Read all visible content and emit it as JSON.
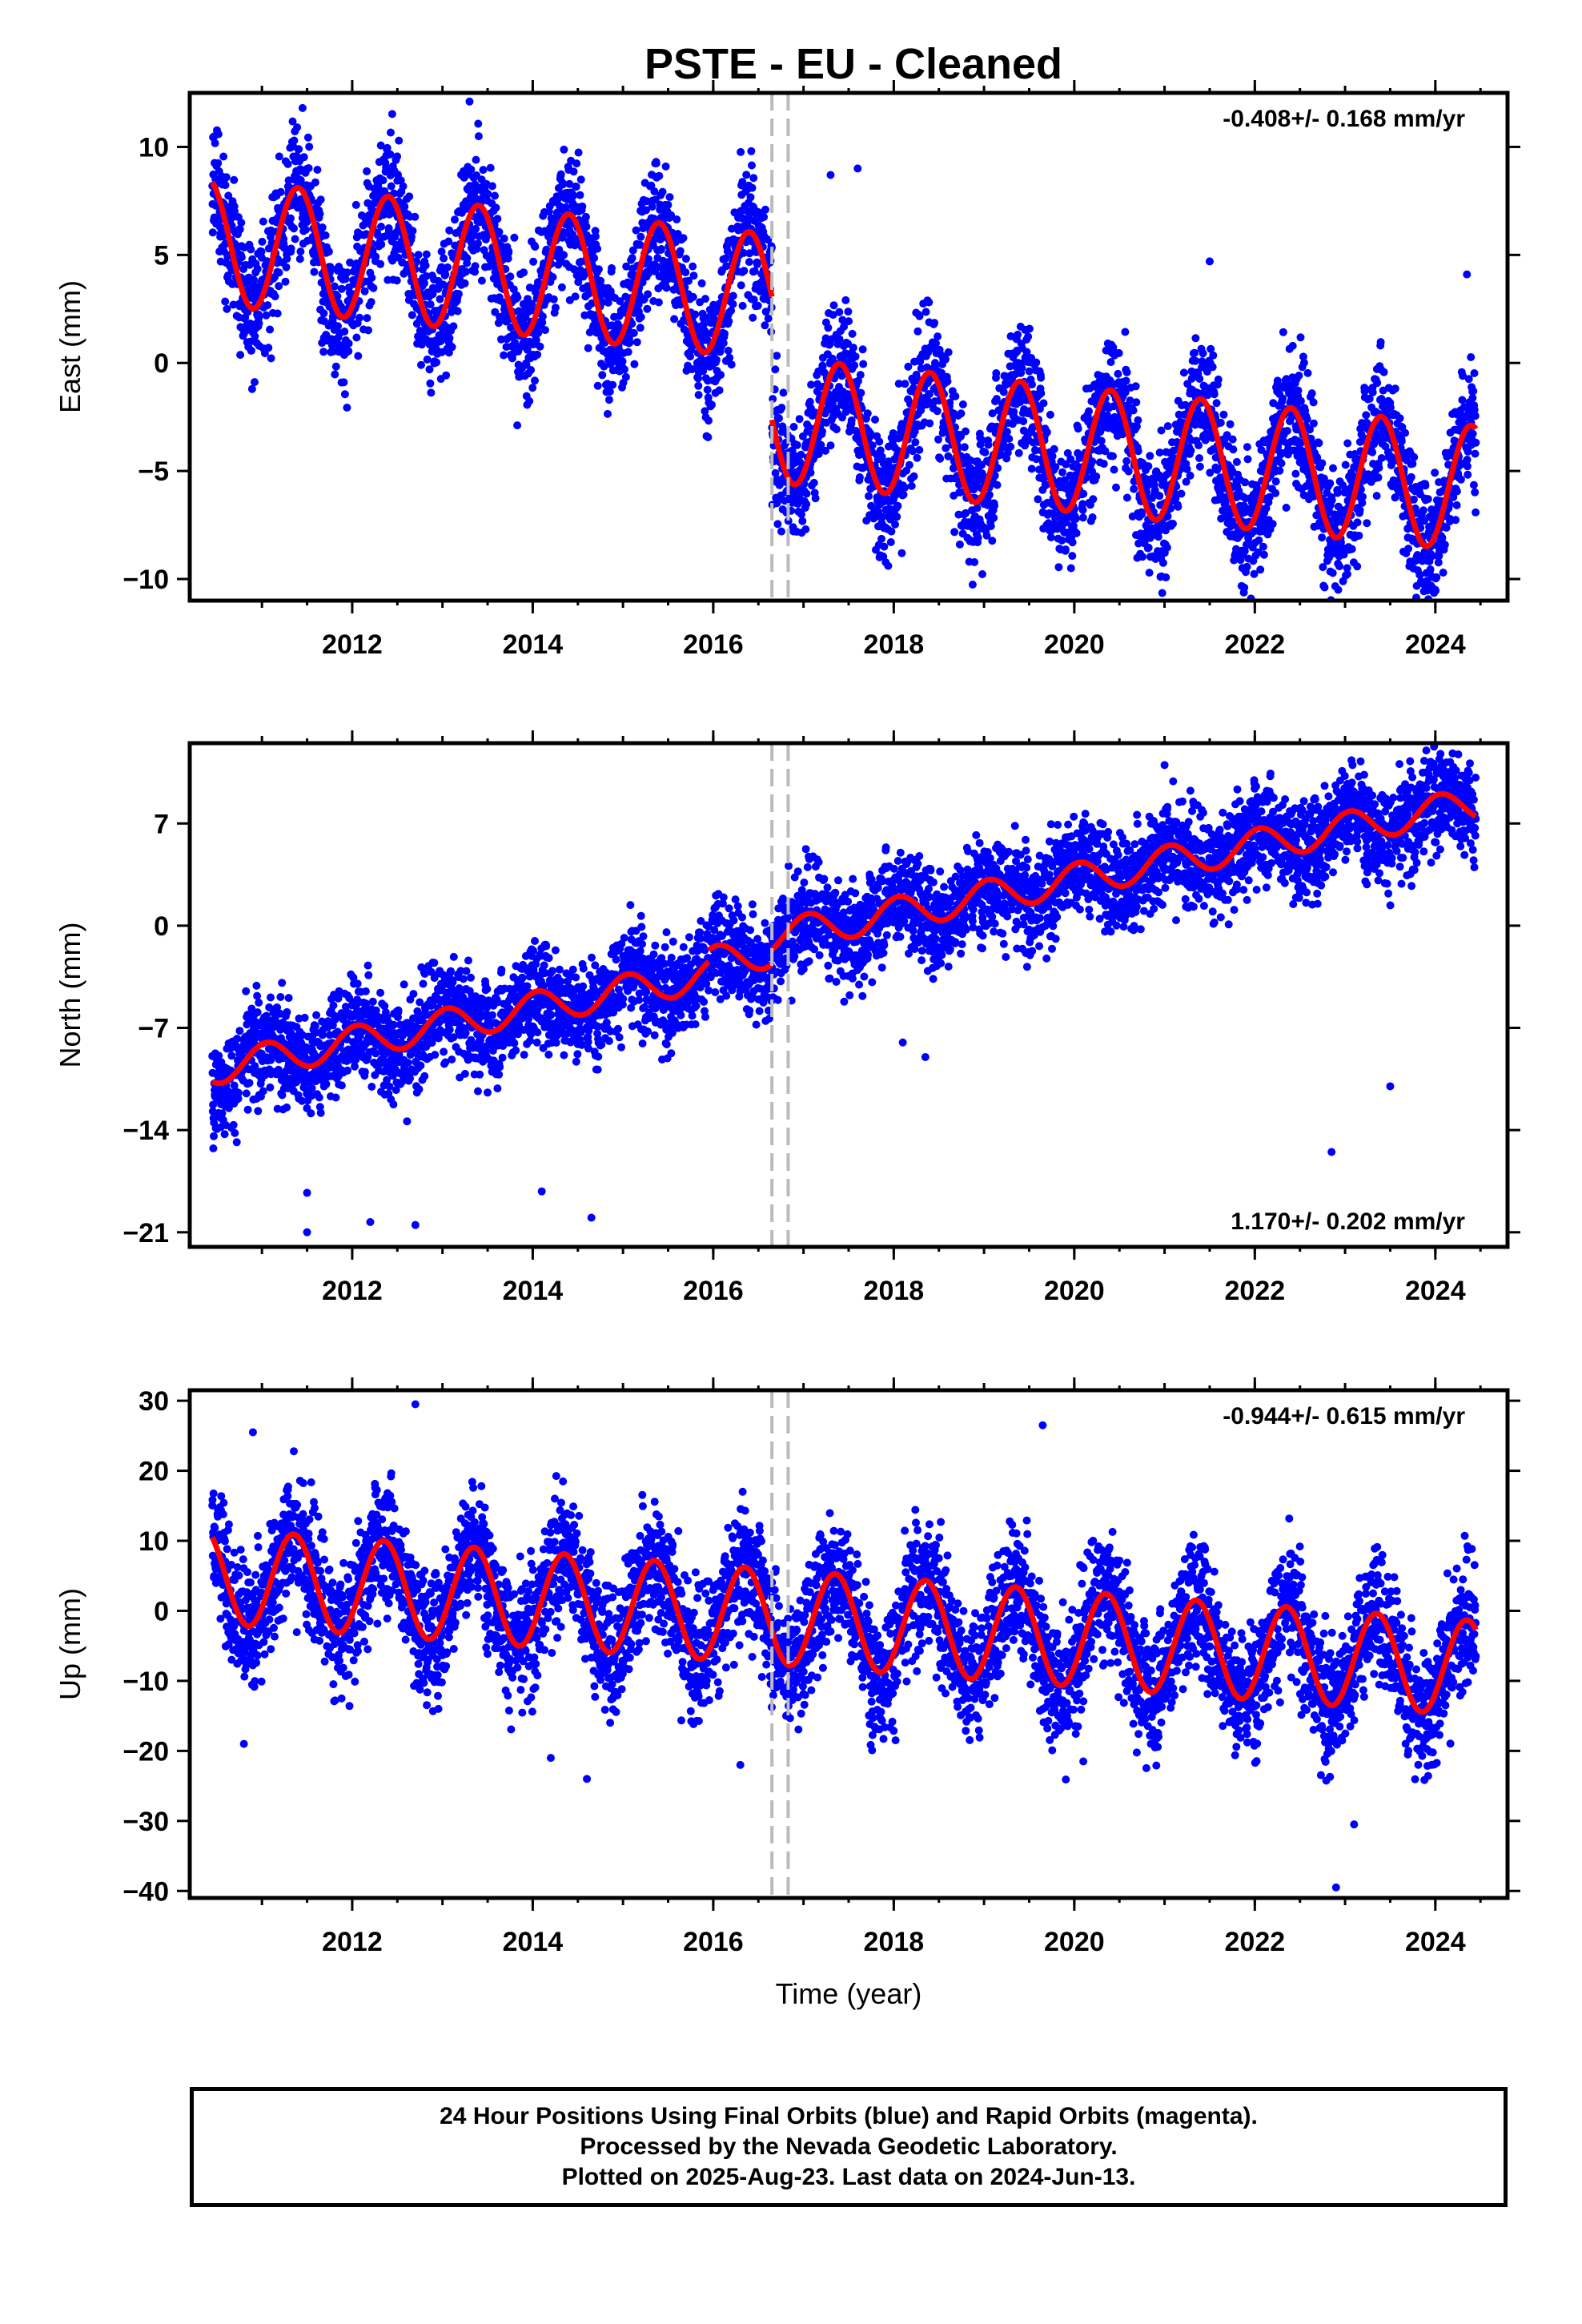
{
  "chart_data": {
    "title": "PSTE  - EU - Cleaned",
    "type": "scatter",
    "x": {
      "label": "Time (year)",
      "range": [
        2010.2,
        2024.8
      ],
      "ticks": [
        2012,
        2014,
        2016,
        2018,
        2020,
        2022,
        2024
      ],
      "tick_labels": [
        "2012",
        "2014",
        "2016",
        "2018",
        "2020",
        "2022",
        "2024"
      ]
    },
    "data_span": {
      "start": 2010.45,
      "end": 2024.45
    },
    "equipment_changes": [
      2016.65,
      2016.83
    ],
    "legend": "none",
    "grid": false,
    "series_styles": {
      "observations": "#0000ff",
      "model_fit": "#ff0000",
      "equipment_change": "#bbbbbb"
    },
    "panels": [
      {
        "component": "east",
        "ylabel": "East (mm)",
        "ylim": [
          -11,
          12.5
        ],
        "yticks": [
          -10,
          -5,
          0,
          5,
          10
        ],
        "ytick_labels": [
          "−10",
          "−5",
          "0",
          "5",
          "10"
        ],
        "rate_text": "-0.408+/- 0.168 mm/yr",
        "rate_position": "top-right",
        "fit": {
          "rate_mm_yr": -0.408,
          "seasonal_amplitude_mm": 2.9,
          "seasonal_phase": 0.4,
          "segments": [
            {
              "start": 2010.45,
              "end": 2016.65,
              "offset_mm": 5.6
            },
            {
              "start": 2016.65,
              "end": 2024.45,
              "offset_mm": -0.1
            }
          ]
        },
        "scatter_sd_mm": 1.5,
        "outliers": [
          [
            2011.45,
            11.8
          ],
          [
            2013.3,
            12.1
          ],
          [
            2017.6,
            9.0
          ],
          [
            2017.3,
            8.7
          ],
          [
            2024.35,
            4.1
          ],
          [
            2023.95,
            -10.3
          ],
          [
            2024.0,
            -10.5
          ],
          [
            2017.85,
            -8.9
          ],
          [
            2021.5,
            4.7
          ]
        ]
      },
      {
        "component": "north",
        "ylabel": "North (mm)",
        "ylim": [
          -22,
          12.5
        ],
        "yticks": [
          -21,
          -14,
          -7,
          0,
          7
        ],
        "ytick_labels": [
          "−21",
          "−14",
          "−7",
          "0",
          "7"
        ],
        "rate_text": "1.170+/- 0.202 mm/yr",
        "rate_position": "bottom-right",
        "fit": {
          "rate_mm_yr": 1.17,
          "seasonal_amplitude_mm": 1.1,
          "seasonal_phase": 0.05,
          "segments": [
            {
              "start": 2010.45,
              "end": 2015.95,
              "offset_mm": -9.8
            },
            {
              "start": 2015.95,
              "end": 2016.65,
              "offset_mm": -9.0
            },
            {
              "start": 2016.65,
              "end": 2024.45,
              "offset_mm": -8.0
            }
          ]
        },
        "scatter_sd_mm": 1.7,
        "outliers": [
          [
            2011.5,
            -21.0
          ],
          [
            2011.5,
            -18.3
          ],
          [
            2012.2,
            -20.3
          ],
          [
            2012.7,
            -20.5
          ],
          [
            2014.1,
            -18.2
          ],
          [
            2014.65,
            -20.0
          ],
          [
            2022.85,
            -15.5
          ],
          [
            2023.5,
            -11.0
          ],
          [
            2018.35,
            -9.0
          ],
          [
            2018.1,
            -8.0
          ],
          [
            2021.0,
            11.0
          ],
          [
            2023.9,
            12.0
          ]
        ]
      },
      {
        "component": "up",
        "ylabel": "Up (mm)",
        "ylim": [
          -41,
          31.5
        ],
        "yticks": [
          -40,
          -30,
          -20,
          -10,
          0,
          10,
          20,
          30
        ],
        "ytick_labels": [
          "−40",
          "−30",
          "−20",
          "−10",
          "0",
          "10",
          "20",
          "30"
        ],
        "rate_text": "-0.944+/- 0.615 mm/yr",
        "rate_position": "top-right",
        "fit": {
          "rate_mm_yr": -0.944,
          "seasonal_amplitude_mm": 6.8,
          "seasonal_phase": 0.35,
          "segments": [
            {
              "start": 2010.45,
              "end": 2024.45,
              "offset_mm": 5.0
            }
          ]
        },
        "scatter_sd_mm": 4.6,
        "outliers": [
          [
            2012.7,
            29.5
          ],
          [
            2010.9,
            25.5
          ],
          [
            2019.65,
            26.5
          ],
          [
            2014.2,
            -21.0
          ],
          [
            2014.6,
            -24.0
          ],
          [
            2016.3,
            -22.0
          ],
          [
            2022.9,
            -39.5
          ],
          [
            2023.1,
            -30.5
          ],
          [
            2020.1,
            -21.5
          ],
          [
            2010.8,
            -19.0
          ]
        ]
      }
    ]
  },
  "footer": {
    "line1": "24 Hour Positions Using Final Orbits (blue) and Rapid Orbits (magenta).",
    "line2": "Processed by the Nevada Geodetic Laboratory.",
    "line3": "Plotted on 2025-Aug-23. Last data on 2024-Jun-13."
  }
}
